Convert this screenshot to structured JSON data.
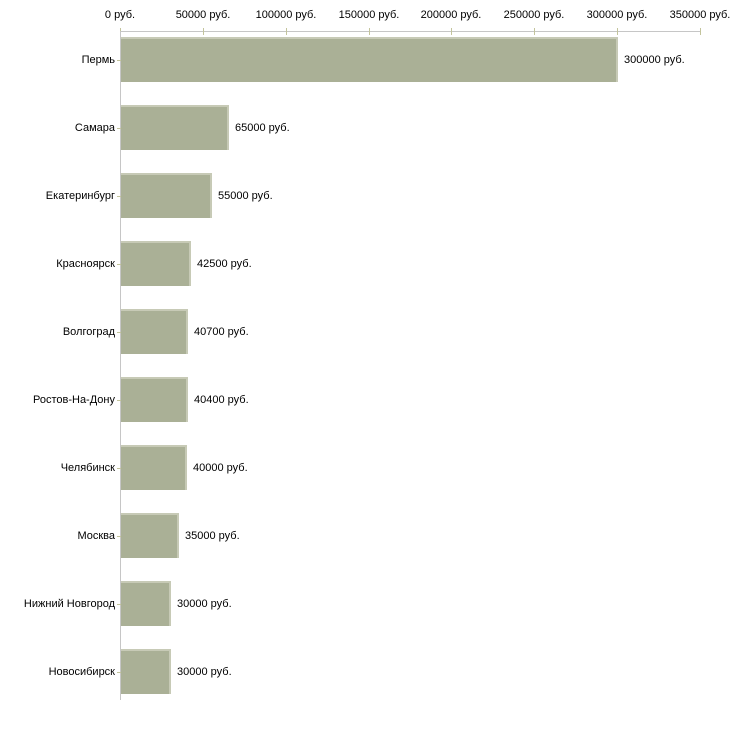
{
  "chart_data": {
    "type": "bar",
    "orientation": "horizontal",
    "title": "",
    "xlabel": "",
    "ylabel": "",
    "categories": [
      "Пермь",
      "Самара",
      "Екатеринбург",
      "Красноярск",
      "Волгоград",
      "Ростов-На-Дону",
      "Челябинск",
      "Москва",
      "Нижний Новгород",
      "Новосибирск"
    ],
    "values": [
      300000,
      65000,
      55000,
      42500,
      40700,
      40400,
      40000,
      35000,
      30000,
      30000
    ],
    "value_labels": [
      "300000 руб.",
      "65000 руб.",
      "55000 руб.",
      "42500 руб.",
      "40700 руб.",
      "40400 руб.",
      "40000 руб.",
      "35000 руб.",
      "30000 руб.",
      "30000 руб."
    ],
    "x_axis": {
      "position": "top",
      "min": 0,
      "max": 350000,
      "ticks": [
        0,
        50000,
        100000,
        150000,
        200000,
        250000,
        300000,
        350000
      ],
      "tick_labels": [
        "0 руб.",
        "50000 руб.",
        "100000 руб.",
        "150000 руб.",
        "200000 руб.",
        "250000 руб.",
        "300000 руб.",
        "350000 руб."
      ]
    },
    "grid": false,
    "legend": false
  },
  "colors": {
    "background": "#ffffff",
    "bar_fill": "#aab096",
    "bar_highlight": "#c7cab6",
    "axis_line": "#c6c6c6",
    "tick_mark": "#c3c49c",
    "text": "#000000"
  }
}
